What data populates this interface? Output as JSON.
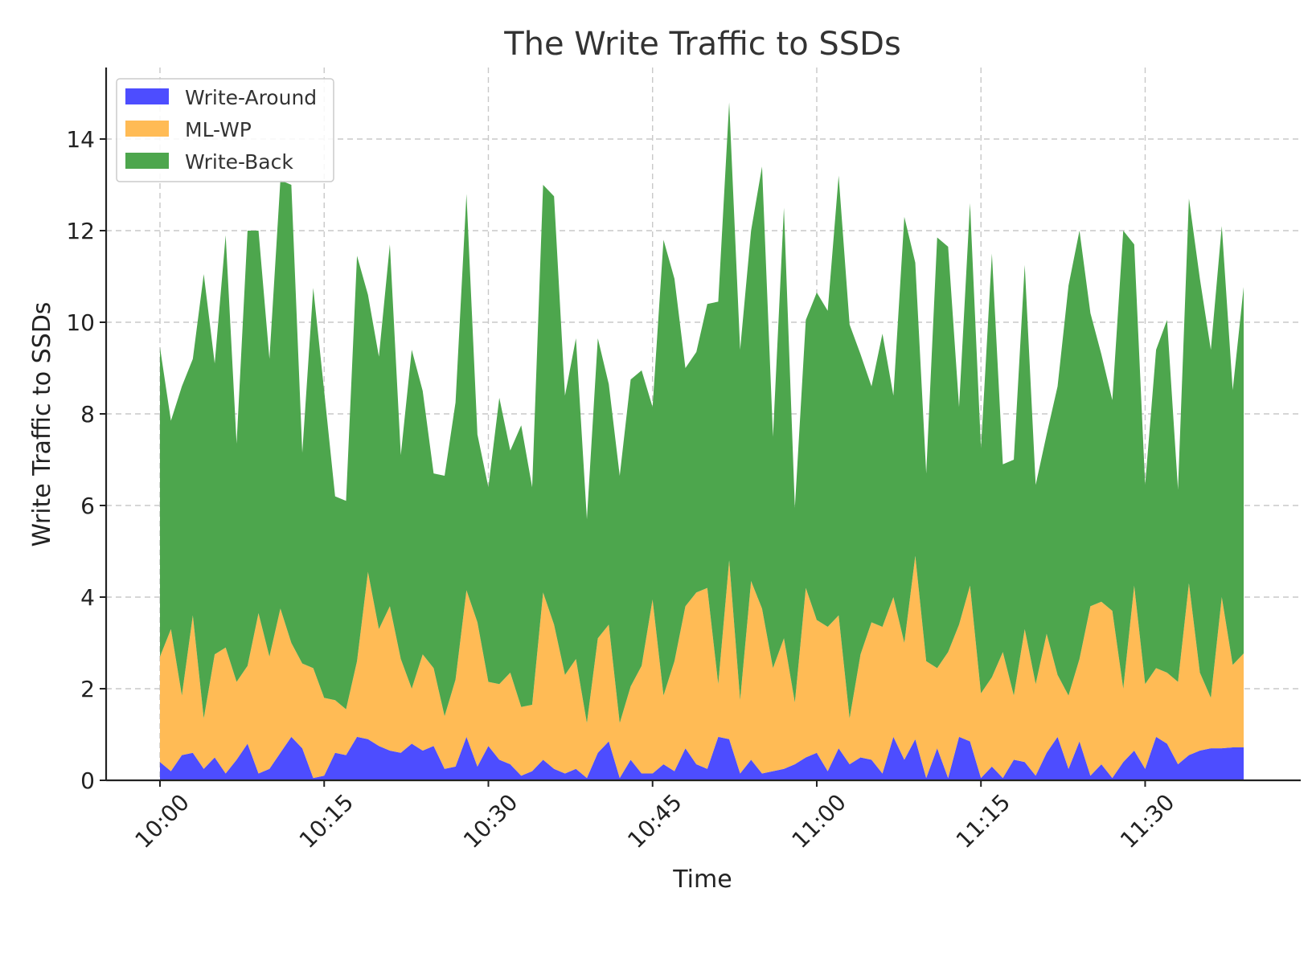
{
  "chart_data": {
    "type": "area",
    "stacked": true,
    "title": "The Write Traffic to SSDs",
    "xlabel": "Time",
    "ylabel": "Write Traffic to SSDs",
    "ylim": [
      0,
      15.5
    ],
    "yticks": [
      0,
      2,
      4,
      6,
      8,
      10,
      12,
      14
    ],
    "x_minutes": [
      0,
      1,
      2,
      3,
      4,
      5,
      6,
      7,
      8,
      9,
      10,
      11,
      12,
      13,
      14,
      15,
      16,
      17,
      18,
      19,
      20,
      21,
      22,
      23,
      24,
      25,
      26,
      27,
      28,
      29,
      30,
      31,
      32,
      33,
      34,
      35,
      36,
      37,
      38,
      39,
      40,
      41,
      42,
      43,
      44,
      45,
      46,
      47,
      48,
      49,
      50,
      51,
      52,
      53,
      54,
      55,
      56,
      57,
      58,
      59,
      60,
      61,
      62,
      63,
      64,
      65,
      66,
      67,
      68,
      69,
      70,
      71,
      72,
      73,
      74,
      75,
      76,
      77,
      78,
      79,
      80,
      81,
      82,
      83,
      84,
      85,
      86,
      87,
      88,
      89,
      90,
      91,
      92,
      93,
      94,
      95,
      96,
      97,
      98,
      99
    ],
    "xticks": [
      {
        "minute": 0,
        "label": "10:00"
      },
      {
        "minute": 15,
        "label": "10:15"
      },
      {
        "minute": 30,
        "label": "10:30"
      },
      {
        "minute": 45,
        "label": "10:45"
      },
      {
        "minute": 60,
        "label": "11:00"
      },
      {
        "minute": 75,
        "label": "11:15"
      },
      {
        "minute": 90,
        "label": "11:30"
      }
    ],
    "legend_position": "top-left",
    "grid": true,
    "series": [
      {
        "name": "Write-Around",
        "color": "#4d4dff",
        "values": [
          0.4,
          0.2,
          0.55,
          0.6,
          0.25,
          0.5,
          0.15,
          0.45,
          0.8,
          0.15,
          0.25,
          0.6,
          0.95,
          0.7,
          0.05,
          0.1,
          0.6,
          0.55,
          0.95,
          0.9,
          0.75,
          0.65,
          0.6,
          0.8,
          0.65,
          0.75,
          0.25,
          0.3,
          0.95,
          0.3,
          0.75,
          0.45,
          0.35,
          0.1,
          0.2,
          0.45,
          0.25,
          0.15,
          0.25,
          0.05,
          0.6,
          0.85,
          0.05,
          0.45,
          0.15,
          0.15,
          0.35,
          0.2,
          0.7,
          0.35,
          0.25,
          0.95,
          0.9,
          0.15,
          0.45,
          0.15,
          0.2,
          0.25,
          0.35,
          0.5,
          0.6,
          0.2,
          0.7,
          0.35,
          0.5,
          0.45,
          0.15,
          0.95,
          0.45,
          0.9,
          0.05,
          0.7,
          0.05,
          0.95,
          0.85,
          0.05,
          0.3,
          0.05,
          0.45,
          0.4,
          0.1,
          0.6,
          0.95,
          0.25,
          0.85,
          0.1,
          0.35,
          0.05,
          0.4,
          0.65,
          0.25,
          0.95,
          0.8,
          0.35,
          0.55,
          0.65,
          0.7,
          0.7,
          0.72,
          0.72
        ]
      },
      {
        "name": "ML-WP",
        "color": "#ffbb55",
        "values": [
          2.3,
          3.1,
          1.3,
          3.0,
          1.1,
          2.25,
          2.75,
          1.7,
          1.7,
          3.5,
          2.45,
          3.15,
          2.05,
          1.85,
          2.4,
          1.7,
          1.15,
          1.0,
          1.65,
          3.65,
          2.55,
          3.15,
          2.05,
          1.2,
          2.1,
          1.7,
          1.15,
          1.9,
          3.2,
          3.15,
          1.4,
          1.65,
          2.0,
          1.5,
          1.45,
          3.65,
          3.15,
          2.15,
          2.4,
          1.2,
          2.5,
          2.55,
          1.2,
          1.6,
          2.35,
          3.8,
          1.5,
          2.4,
          3.1,
          3.75,
          3.95,
          1.15,
          3.9,
          1.6,
          3.9,
          3.6,
          2.25,
          2.85,
          1.35,
          3.7,
          2.9,
          3.15,
          2.9,
          1.0,
          2.25,
          3.0,
          3.2,
          3.05,
          2.55,
          4.0,
          2.55,
          1.75,
          2.75,
          2.45,
          3.4,
          1.85,
          1.95,
          2.75,
          1.4,
          2.9,
          2.0,
          2.6,
          1.35,
          1.6,
          1.8,
          3.7,
          3.55,
          3.65,
          1.6,
          3.6,
          1.85,
          1.5,
          1.55,
          1.8,
          3.75,
          1.7,
          1.1,
          3.3,
          1.8,
          2.05
        ]
      },
      {
        "name": "Write-Back",
        "color": "#4da64d",
        "values": [
          6.75,
          4.55,
          6.75,
          5.6,
          9.7,
          6.35,
          9.0,
          5.2,
          9.5,
          8.35,
          6.5,
          9.35,
          10.0,
          4.6,
          8.3,
          6.7,
          4.45,
          4.55,
          8.85,
          6.05,
          5.95,
          7.9,
          4.45,
          7.4,
          5.75,
          4.25,
          5.25,
          6.05,
          8.65,
          4.1,
          4.25,
          6.25,
          4.85,
          6.15,
          4.75,
          8.9,
          9.35,
          6.1,
          7.0,
          4.45,
          6.55,
          5.25,
          5.4,
          6.7,
          6.45,
          4.2,
          9.95,
          8.35,
          5.2,
          5.25,
          6.2,
          8.35,
          10.0,
          7.65,
          7.65,
          9.65,
          5.05,
          9.4,
          4.25,
          5.85,
          7.15,
          6.9,
          9.6,
          8.6,
          6.55,
          5.15,
          6.4,
          4.4,
          9.3,
          6.4,
          4.1,
          9.4,
          8.85,
          4.75,
          8.35,
          5.35,
          9.25,
          4.1,
          5.15,
          7.95,
          4.35,
          4.35,
          6.3,
          8.95,
          9.35,
          6.4,
          5.4,
          4.6,
          10.0,
          7.45,
          4.35,
          6.95,
          7.7,
          4.2,
          8.4,
          8.6,
          7.6,
          8.1,
          6.0,
          8.0
        ]
      }
    ]
  }
}
